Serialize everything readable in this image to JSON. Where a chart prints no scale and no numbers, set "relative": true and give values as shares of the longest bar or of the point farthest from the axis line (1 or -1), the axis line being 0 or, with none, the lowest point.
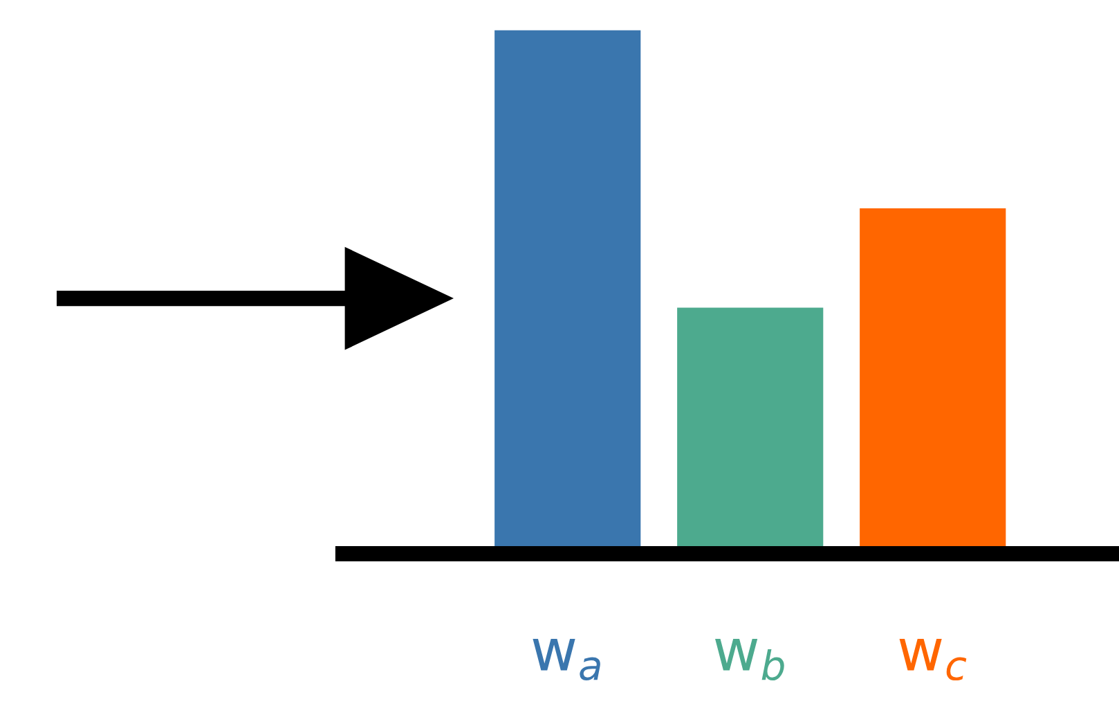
{
  "chart_data": {
    "type": "bar",
    "relative": true,
    "categories": [
      "w$_{a}$",
      "w$_{b}$",
      "w$_{c}$"
    ],
    "values": [
      1,
      0.47,
      0.66
    ],
    "colors": [
      "#3a76ae",
      "#4daa8e",
      "#ff6600"
    ]
  }
}
